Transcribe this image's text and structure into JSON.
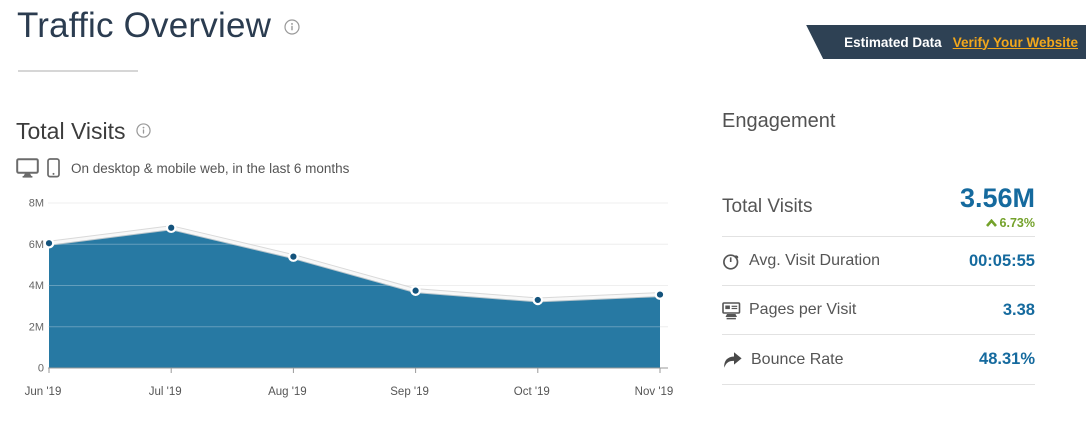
{
  "header": {
    "title": "Traffic Overview"
  },
  "badge": {
    "label": "Estimated Data",
    "link_text": "Verify Your Website",
    "bg_color": "#2e4154",
    "link_color": "#f2a71c"
  },
  "visits_section": {
    "heading": "Total Visits",
    "subtitle": "On desktop & mobile web, in the last 6 months"
  },
  "chart_data": {
    "type": "area",
    "title": "Total Visits",
    "categories": [
      "Jun '19",
      "Jul '19",
      "Aug '19",
      "Sep '19",
      "Oct '19",
      "Nov '19"
    ],
    "values": [
      6.05,
      6.8,
      5.4,
      3.75,
      3.3,
      3.56
    ],
    "unit": "millions of visits",
    "xlabel": "",
    "ylabel": "",
    "ylim": [
      0,
      8
    ],
    "ytick_values": [
      0,
      2,
      4,
      6,
      8
    ],
    "ytick_labels": [
      "0",
      "2M",
      "4M",
      "6M",
      "8M"
    ],
    "grid": true,
    "legend": false,
    "colors": {
      "area_fill": "#2779a3",
      "line": "#f8f8f8",
      "line_shadow": "#d2d2d2",
      "dot": "#14537c",
      "dot_ring": "#ffffff",
      "grid_line": "#e9e9e9",
      "grid_overlay": "rgba(255,255,255,0.28)",
      "axis_line": "#9a9a9a",
      "tick_text": "#666666",
      "xlabel_text": "#555555"
    }
  },
  "engagement": {
    "heading": "Engagement",
    "total_visits": {
      "label": "Total Visits",
      "value": "3.56M",
      "change": "6.73%",
      "change_direction": "up"
    },
    "rows": [
      {
        "label": "Avg. Visit Duration",
        "value": "00:05:55",
        "icon": "stopwatch-icon"
      },
      {
        "label": "Pages per Visit",
        "value": "3.38",
        "icon": "pages-icon"
      },
      {
        "label": "Bounce Rate",
        "value": "48.31%",
        "icon": "bounce-arrow-icon"
      }
    ]
  },
  "colors": {
    "accent_blue": "#156a9e",
    "positive_green": "#74a22b",
    "title_navy": "#2b3c50"
  }
}
